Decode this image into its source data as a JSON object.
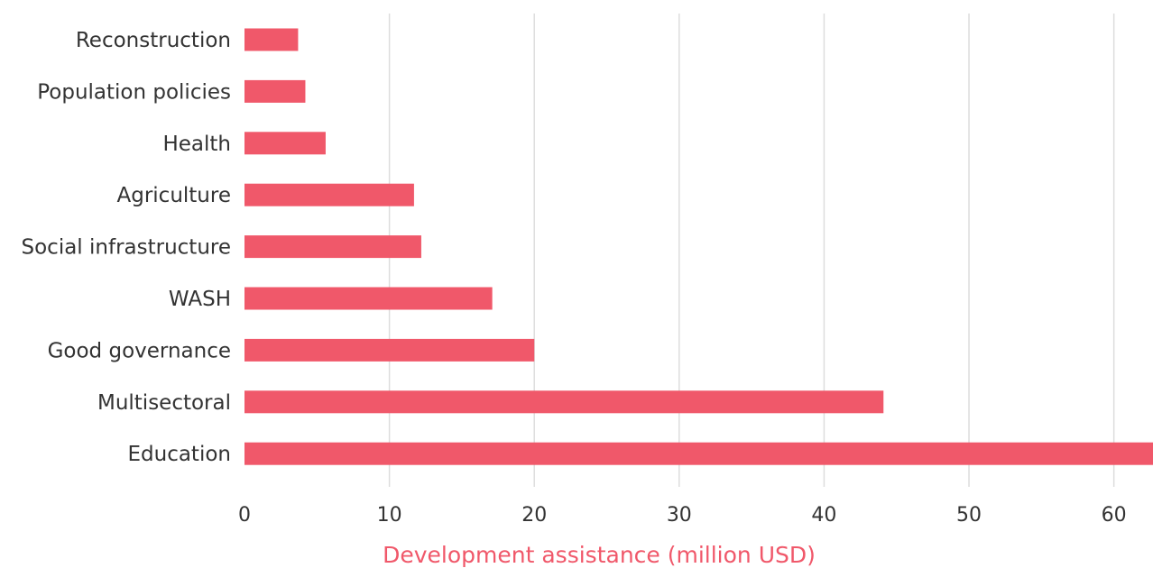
{
  "chart_data": {
    "type": "bar",
    "orientation": "horizontal",
    "categories": [
      "Reconstruction",
      "Population policies",
      "Health",
      "Agriculture",
      "Social infrastructure",
      "WASH",
      "Good governance",
      "Multisectoral",
      "Education"
    ],
    "values": [
      3.7,
      4.2,
      5.6,
      11.7,
      12.2,
      17.1,
      20.0,
      44.1,
      62.7
    ],
    "xlabel": "Development assistance (million USD)",
    "ylabel": "",
    "xlim": [
      0,
      62.7
    ],
    "xticks": [
      0,
      10,
      20,
      30,
      40,
      50,
      60
    ],
    "grid": "vertical",
    "legend": "none"
  },
  "colors": {
    "bar": "#f0586a",
    "axis_title": "#f0586a",
    "grid": "#dddddd",
    "text": "#333333"
  }
}
